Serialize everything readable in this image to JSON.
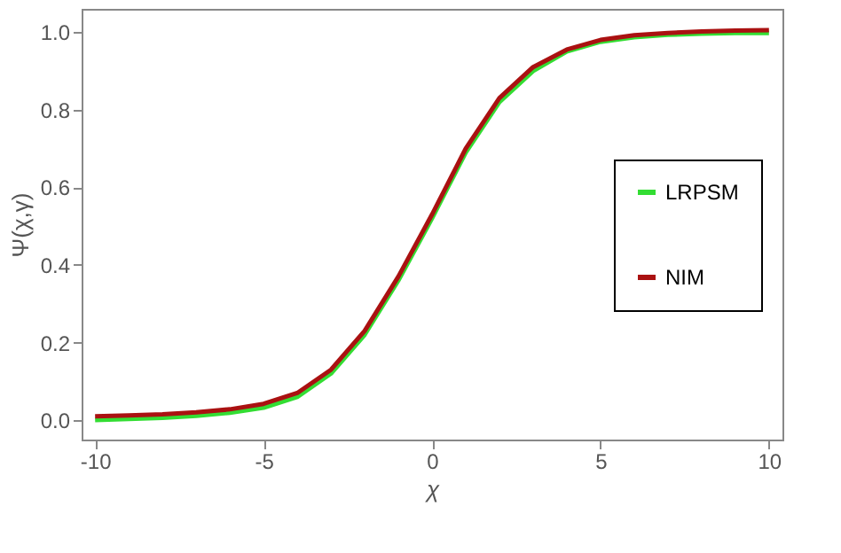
{
  "chart_data": {
    "type": "line",
    "xlabel": "χ",
    "ylabel": "Ψ(χ,γ)",
    "xlim": [
      -10.4,
      10.4
    ],
    "ylim": [
      -0.05,
      1.06
    ],
    "xticks": [
      -10,
      -5,
      0,
      5,
      10
    ],
    "yticks": [
      {
        "value": 0,
        "label": "0.0"
      },
      0.2,
      0.4,
      0.6,
      0.8,
      {
        "value": 1,
        "label": "1.0"
      }
    ],
    "grid": false,
    "legend": "right",
    "marker": "none",
    "line_style": "solid",
    "x": [
      -10,
      -9,
      -8,
      -7,
      -6,
      -5,
      -4,
      -3,
      -2,
      -1,
      0,
      1,
      2,
      3,
      4,
      5,
      6,
      7,
      8,
      9,
      10
    ],
    "series": [
      {
        "name": "LRPSM",
        "color": "#33dd33",
        "values": [
          0.0,
          0.003,
          0.006,
          0.011,
          0.019,
          0.032,
          0.06,
          0.12,
          0.22,
          0.36,
          0.52,
          0.69,
          0.82,
          0.9,
          0.95,
          0.975,
          0.987,
          0.993,
          0.996,
          0.998,
          0.998
        ]
      },
      {
        "name": "NIM",
        "color": "#aa1111",
        "values": [
          0.01,
          0.012,
          0.015,
          0.02,
          0.028,
          0.042,
          0.07,
          0.13,
          0.23,
          0.37,
          0.53,
          0.7,
          0.83,
          0.91,
          0.955,
          0.98,
          0.992,
          0.998,
          1.002,
          1.004,
          1.005
        ]
      }
    ]
  }
}
